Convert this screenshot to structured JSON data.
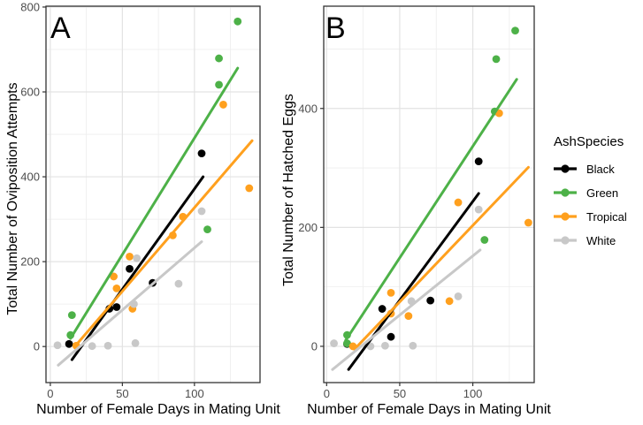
{
  "legend": {
    "title": "AshSpecies",
    "items": [
      {
        "label": "Black",
        "color": "#000000"
      },
      {
        "label": "Green",
        "color": "#4DB148"
      },
      {
        "label": "Tropical",
        "color": "#FFA01E"
      },
      {
        "label": "White",
        "color": "#C8C8C8"
      }
    ]
  },
  "style": {
    "grid_major_color": "#E3E3E3",
    "grid_minor_color": "#EDEDED",
    "panel_border_color": "#333333",
    "tick_color": "#333333",
    "tick_label_color": "#4D4D4D",
    "background": "#FFFFFF"
  },
  "chart_data": [
    {
      "type": "scatter",
      "panel_label": "A",
      "xlabel": "Number of Female Days in Mating Unit",
      "ylabel": "Total Number of Oviposition Attempts",
      "xlim": [
        -3,
        145.5
      ],
      "ylim": [
        -85,
        802
      ],
      "x_ticks": [
        0,
        50,
        100
      ],
      "x_minor_ticks": [
        25,
        75,
        125
      ],
      "y_ticks": [
        0,
        200,
        400,
        600,
        800
      ],
      "y_minor_ticks": [
        100,
        300,
        500,
        700
      ],
      "grid": true,
      "legend_position": "right-shared",
      "series": [
        {
          "name": "Black",
          "color": "#000000",
          "points": [
            [
              13,
              6
            ],
            [
              41,
              89
            ],
            [
              46,
              93
            ],
            [
              55,
              183
            ],
            [
              71,
              150
            ],
            [
              105,
              455
            ]
          ],
          "fit_line": {
            "x1": 15,
            "y1": -31,
            "x2": 106,
            "y2": 400
          }
        },
        {
          "name": "Green",
          "color": "#4DB148",
          "points": [
            [
              14,
              27
            ],
            [
              15,
              74
            ],
            [
              109,
              276
            ],
            [
              117,
              617
            ],
            [
              117,
              679
            ],
            [
              130,
              766
            ]
          ],
          "fit_line": {
            "x1": 14,
            "y1": 19,
            "x2": 130,
            "y2": 656
          }
        },
        {
          "name": "Tropical",
          "color": "#FFA01E",
          "points": [
            [
              18,
              2
            ],
            [
              44,
              165
            ],
            [
              46,
              137
            ],
            [
              55,
              212
            ],
            [
              57,
              89
            ],
            [
              85,
              262
            ],
            [
              92,
              306
            ],
            [
              120,
              570
            ],
            [
              138,
              373
            ]
          ],
          "fit_line": {
            "x1": 18,
            "y1": 4,
            "x2": 140,
            "y2": 485
          }
        },
        {
          "name": "White",
          "color": "#C8C8C8",
          "points": [
            [
              5,
              3
            ],
            [
              29,
              1
            ],
            [
              40,
              2
            ],
            [
              59,
              8
            ],
            [
              58,
              100
            ],
            [
              60,
              208
            ],
            [
              89,
              148
            ],
            [
              105,
              319
            ]
          ],
          "fit_line": {
            "x1": 5.5,
            "y1": -44,
            "x2": 105,
            "y2": 247
          }
        }
      ]
    },
    {
      "type": "scatter",
      "panel_label": "B",
      "xlabel": "Number of Female Days in Mating Unit",
      "ylabel": "Total Number of Hatched Eggs",
      "xlim": [
        -2,
        142
      ],
      "ylim": [
        -61,
        572
      ],
      "x_ticks": [
        0,
        50,
        100
      ],
      "x_minor_ticks": [
        25,
        75,
        125
      ],
      "y_ticks": [
        0,
        200,
        400
      ],
      "y_minor_ticks": [
        100,
        300,
        500
      ],
      "grid": true,
      "legend_position": "right-shared",
      "series": [
        {
          "name": "Black",
          "color": "#000000",
          "points": [
            [
              14,
              4
            ],
            [
              38,
              63
            ],
            [
              44,
              16
            ],
            [
              71,
              77
            ],
            [
              104,
              311
            ]
          ],
          "fit_line": {
            "x1": 15,
            "y1": -39,
            "x2": 104,
            "y2": 257
          }
        },
        {
          "name": "Green",
          "color": "#4DB148",
          "points": [
            [
              14,
              5
            ],
            [
              14,
              19
            ],
            [
              108,
              179
            ],
            [
              115,
              395
            ],
            [
              116,
              483
            ],
            [
              129,
              531
            ]
          ],
          "fit_line": {
            "x1": 13,
            "y1": 10,
            "x2": 130,
            "y2": 449
          }
        },
        {
          "name": "Tropical",
          "color": "#FFA01E",
          "points": [
            [
              18,
              0
            ],
            [
              44,
              55
            ],
            [
              44,
              90
            ],
            [
              56,
              51
            ],
            [
              84,
              76
            ],
            [
              90,
              242
            ],
            [
              118,
              392
            ],
            [
              138,
              208
            ]
          ],
          "fit_line": {
            "x1": 19,
            "y1": -5,
            "x2": 138,
            "y2": 301
          }
        },
        {
          "name": "White",
          "color": "#C8C8C8",
          "points": [
            [
              5,
              5
            ],
            [
              30,
              0
            ],
            [
              40,
              1
            ],
            [
              59,
              1
            ],
            [
              58,
              76
            ],
            [
              90,
              84
            ],
            [
              104,
              230
            ]
          ],
          "fit_line": {
            "x1": 4,
            "y1": -39,
            "x2": 105,
            "y2": 162
          }
        }
      ]
    }
  ]
}
